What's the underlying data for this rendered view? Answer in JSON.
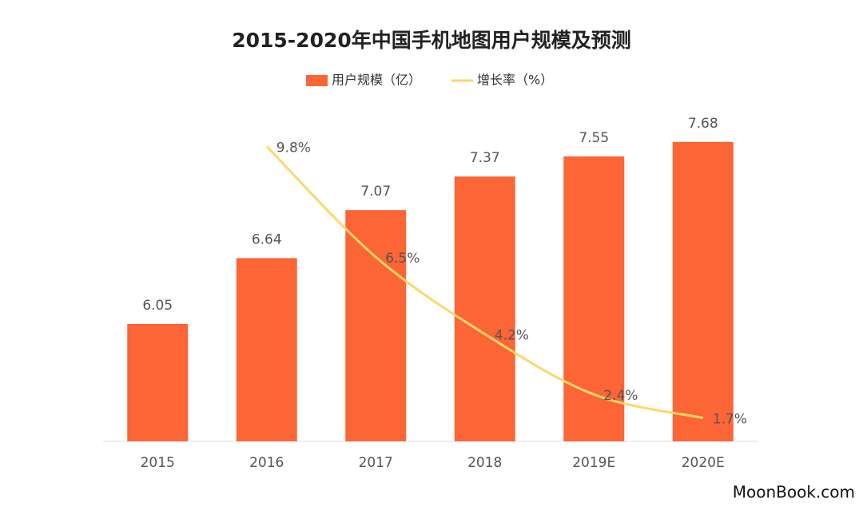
{
  "chart_data": {
    "type": "bar_line",
    "title": "2015-2020年中国手机地图用户规模及预测",
    "categories": [
      "2015",
      "2016",
      "2017",
      "2018",
      "2019E",
      "2020E"
    ],
    "series": [
      {
        "name": "用户规模（亿）",
        "type": "bar",
        "color": "#fc6535",
        "axis": "y",
        "values": [
          6.05,
          6.64,
          7.07,
          7.37,
          7.55,
          7.68
        ]
      },
      {
        "name": "增长率（%）",
        "type": "line",
        "color": "#fdd76a",
        "axis": "y2",
        "values": [
          null,
          9.8,
          6.5,
          4.2,
          2.4,
          1.7
        ],
        "value_labels": [
          null,
          "9.8%",
          "6.5%",
          "4.2%",
          "2.4%",
          "1.7%"
        ]
      }
    ],
    "ylim": [
      5,
      8
    ],
    "y2lim": [
      1,
      11
    ],
    "legend": "top",
    "watermark": "MoonBook.com"
  }
}
